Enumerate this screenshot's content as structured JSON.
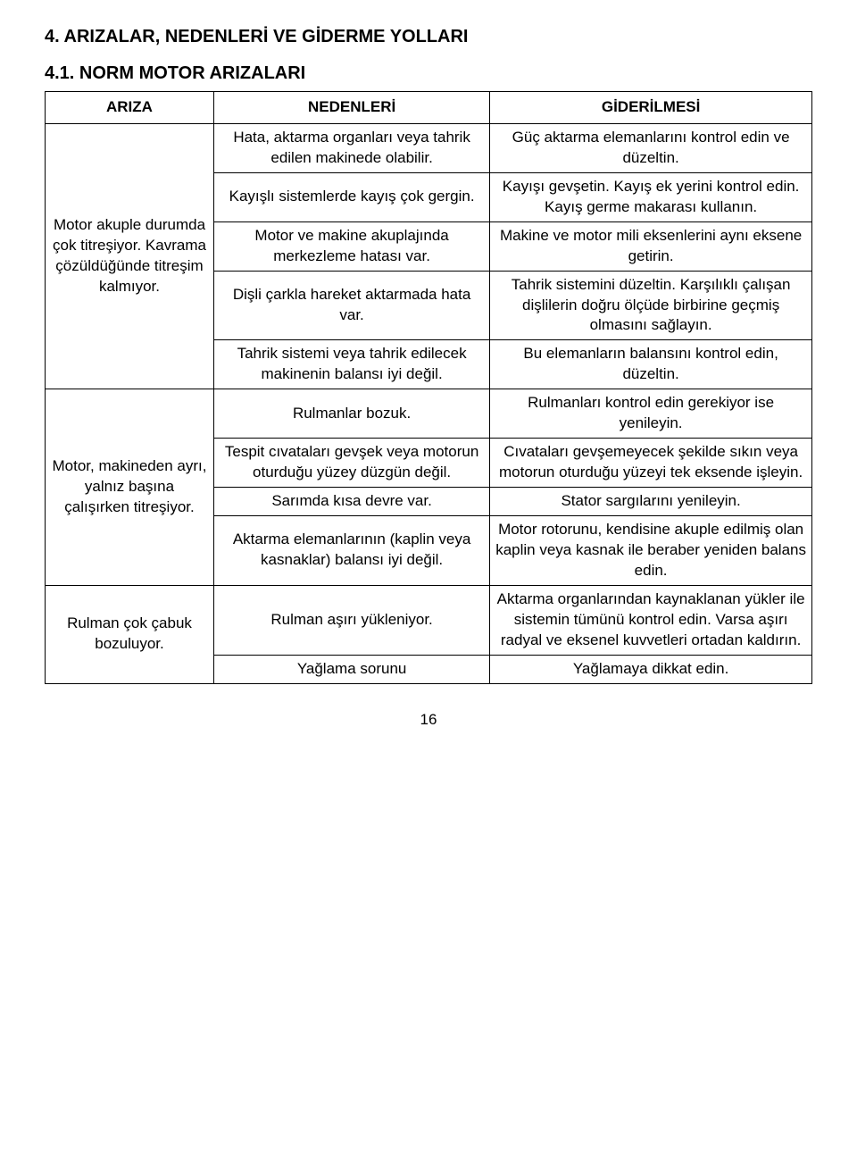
{
  "section_title": "4. ARIZALAR, NEDENLERİ VE GİDERME YOLLARI",
  "subsection_title": "4.1. NORM MOTOR ARIZALARI",
  "headers": {
    "col1": "ARIZA",
    "col2": "NEDENLERİ",
    "col3": "GİDERİLMESİ"
  },
  "groups": [
    {
      "ariza": "Motor akuple durumda çok titreşiyor. Kavrama çözüldüğünde titreşim kalmıyor.",
      "rows": [
        {
          "neden": "Hata, aktarma organları veya tahrik edilen makinede olabilir.",
          "giderilmesi": "Güç aktarma elemanlarını kontrol edin ve düzeltin."
        },
        {
          "neden": "Kayışlı sistemlerde kayış çok gergin.",
          "giderilmesi": "Kayışı gevşetin. Kayış ek yerini kontrol edin. Kayış germe makarası kullanın."
        },
        {
          "neden": "Motor ve makine akuplajında merkezleme hatası var.",
          "giderilmesi": "Makine ve motor mili eksenlerini aynı eksene getirin."
        },
        {
          "neden": "Dişli çarkla hareket aktarmada hata var.",
          "giderilmesi": "Tahrik sistemini düzeltin. Karşılıklı çalışan dişlilerin doğru ölçüde birbirine geçmiş olmasını sağlayın."
        },
        {
          "neden": "Tahrik sistemi veya tahrik edilecek makinenin balansı iyi değil.",
          "giderilmesi": "Bu elemanların balansını kontrol edin, düzeltin."
        }
      ]
    },
    {
      "ariza": "Motor, makineden ayrı, yalnız başına çalışırken titreşiyor.",
      "rows": [
        {
          "neden": "Rulmanlar bozuk.",
          "giderilmesi": "Rulmanları kontrol edin gerekiyor ise yenileyin."
        },
        {
          "neden": "Tespit cıvataları gevşek veya motorun oturduğu yüzey düzgün değil.",
          "giderilmesi": "Cıvataları gevşemeyecek şekilde sıkın veya motorun oturduğu yüzeyi tek eksende işleyin."
        },
        {
          "neden": "Sarımda kısa devre var.",
          "giderilmesi": "Stator sargılarını yenileyin."
        },
        {
          "neden": "Aktarma elemanlarının (kaplin veya kasnaklar) balansı iyi değil.",
          "giderilmesi": "Motor rotorunu, kendisine akuple edilmiş olan kaplin veya kasnak ile beraber yeniden balans edin."
        }
      ]
    },
    {
      "ariza": "Rulman çok çabuk bozuluyor.",
      "rows": [
        {
          "neden": "Rulman aşırı yükleniyor.",
          "giderilmesi": "Aktarma organlarından kaynaklanan yükler ile sistemin tümünü kontrol edin. Varsa aşırı radyal ve eksenel kuvvetleri ortadan kaldırın."
        },
        {
          "neden": "Yağlama sorunu",
          "giderilmesi": "Yağlamaya dikkat edin."
        }
      ]
    }
  ],
  "page_number": "16"
}
